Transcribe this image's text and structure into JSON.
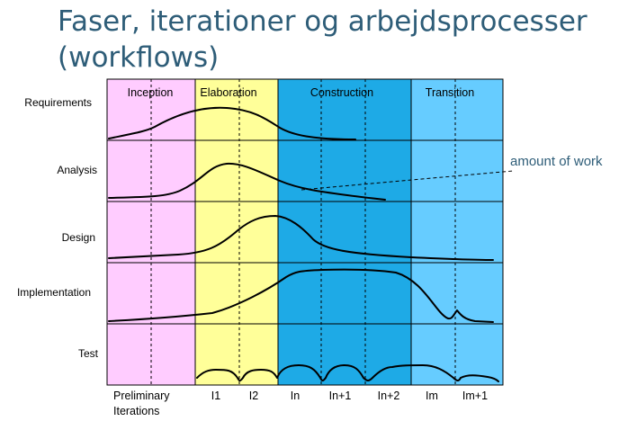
{
  "title": {
    "line1": "Faser, iterationer og arbejdsprocesser",
    "line2": "(workflows)"
  },
  "phases": [
    {
      "label": "Inception",
      "color": "#ffccff"
    },
    {
      "label": "Elaboration",
      "color": "#ffff99"
    },
    {
      "label": "Construction",
      "color": "#1eaae6"
    },
    {
      "label": "Transition",
      "color": "#66ccff"
    }
  ],
  "workflows": [
    "Requirements",
    "Analysis",
    "Design",
    "Implementation",
    "Test"
  ],
  "iterations": {
    "preliminary_line1": "Preliminary",
    "preliminary_line2": "Iterations",
    "items": [
      "I1",
      "I2",
      "In",
      "In+1",
      "In+2",
      "Im",
      "Im+1"
    ]
  },
  "annotation": "amount of work"
}
